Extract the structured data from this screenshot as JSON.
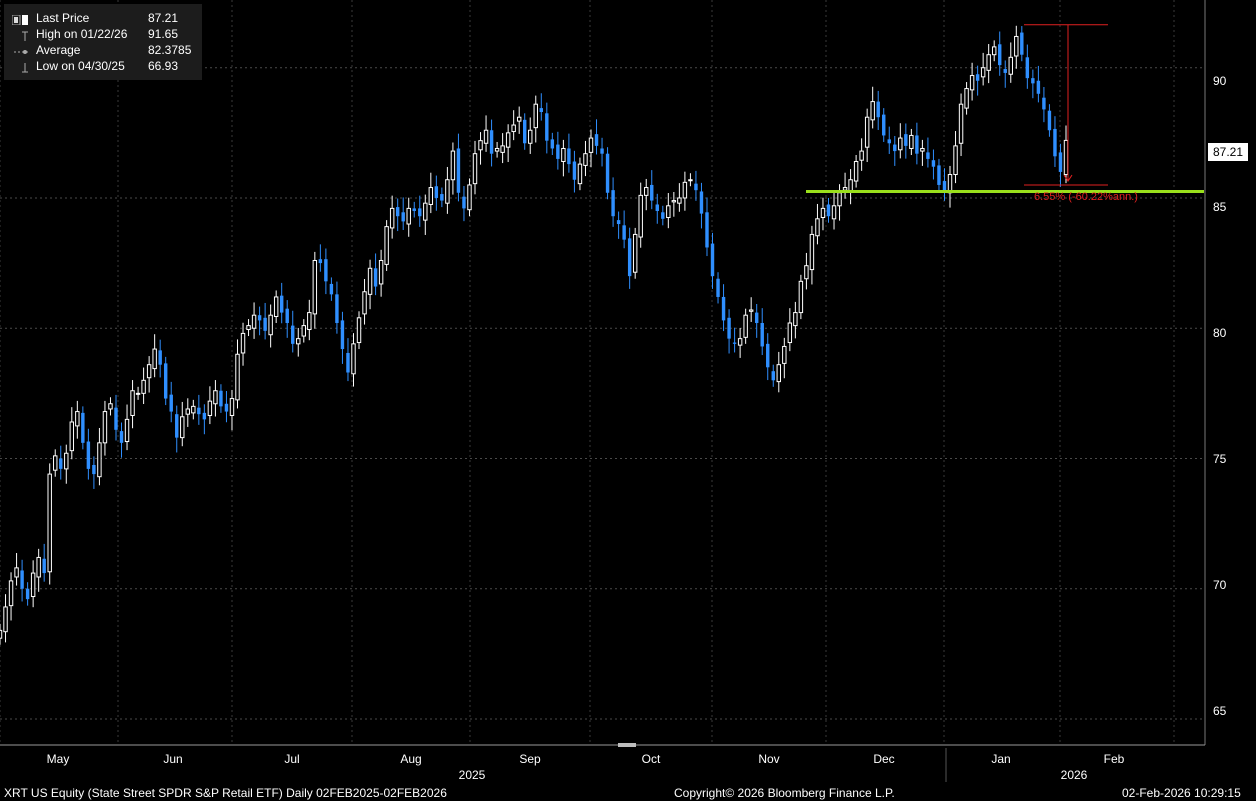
{
  "legend": {
    "last_label": "Last Price",
    "last_value": "87.21",
    "high_label": "High on 01/22/26",
    "high_value": "91.65",
    "avg_label": "Average",
    "avg_value": "82.3785",
    "low_label": "Low on 04/30/25",
    "low_value": "66.93"
  },
  "price_tag": "87.21",
  "annotation": "6.55% (-60.22%ann.)",
  "footer": {
    "left": "XRT US Equity (State Street SPDR S&P Retail ETF) Daily 02FEB2025-02FEB2026",
    "center": "Copyright© 2026 Bloomberg Finance L.P.",
    "right": "02-Feb-2026 10:29:15"
  },
  "y_ticks": [
    "65",
    "70",
    "75",
    "80",
    "85",
    "90"
  ],
  "x_months": [
    "May",
    "Jun",
    "Jul",
    "Aug",
    "Sep",
    "Oct",
    "Nov",
    "Dec",
    "Jan",
    "Feb"
  ],
  "x_years": [
    "2025",
    "2026"
  ],
  "colors": {
    "up": "#ffffff",
    "down": "#2f8fff",
    "support_line": "#9ae01c",
    "measure": "#e02020"
  },
  "chart_data": {
    "type": "candlestick",
    "title": "",
    "xlabel": "",
    "ylabel": "",
    "ylim": [
      64,
      92.6
    ],
    "grid": true,
    "legend_position": "top-left",
    "last_price": 87.21,
    "high": {
      "date": "2026-01-22",
      "value": 91.65
    },
    "average": 82.3785,
    "low": {
      "date": "2025-04-30",
      "value": 66.93
    },
    "support_level": 85.25,
    "measure": {
      "from": 91.65,
      "to": 85.65,
      "label": "6.55% (-60.22%ann.)"
    },
    "series": [
      {
        "name": "Last Price",
        "closes": [
          68.4,
          69.3,
          70.3,
          70.8,
          70.0,
          69.6,
          70.6,
          71.2,
          70.6,
          74.4,
          75.1,
          74.6,
          75.2,
          76.4,
          76.8,
          75.6,
          74.6,
          74.4,
          75.6,
          76.8,
          77.1,
          76.1,
          75.6,
          76.5,
          77.6,
          77.5,
          78.0,
          78.6,
          79.2,
          78.6,
          77.3,
          76.8,
          75.8,
          76.6,
          76.9,
          77.0,
          76.7,
          76.5,
          77.2,
          77.6,
          77.0,
          76.8,
          77.3,
          79.0,
          79.8,
          80.1,
          80.5,
          80.3,
          79.9,
          80.5,
          81.2,
          80.6,
          80.2,
          79.4,
          79.6,
          80.1,
          80.6,
          82.6,
          82.5,
          81.8,
          81.3,
          80.2,
          79.2,
          78.3,
          79.4,
          80.4,
          81.4,
          82.3,
          81.6,
          82.6,
          83.9,
          84.6,
          84.3,
          84.1,
          84.6,
          84.5,
          84.3,
          84.8,
          85.4,
          85.0,
          84.9,
          85.7,
          86.8,
          85.2,
          84.6,
          85.5,
          86.7,
          87.2,
          87.6,
          86.7,
          86.9,
          87.0,
          87.5,
          87.8,
          88.1,
          87.1,
          87.6,
          88.6,
          88.3,
          87.2,
          86.9,
          86.5,
          86.9,
          86.3,
          85.7,
          86.3,
          86.7,
          87.3,
          87.0,
          86.7,
          85.2,
          84.3,
          84.0,
          83.4,
          82.0,
          83.6,
          85.1,
          85.4,
          84.9,
          84.5,
          84.2,
          84.7,
          84.9,
          85.0,
          85.6,
          85.7,
          85.3,
          84.4,
          83.1,
          82.0,
          81.2,
          80.3,
          79.6,
          79.4,
          79.6,
          80.5,
          80.7,
          80.2,
          79.3,
          78.5,
          78.0,
          78.6,
          79.3,
          80.2,
          80.6,
          81.8,
          82.4,
          83.6,
          84.2,
          84.6,
          84.3,
          84.7,
          85.2,
          85.4,
          85.7,
          86.4,
          86.8,
          88.1,
          88.7,
          88.1,
          87.4,
          87.1,
          86.8,
          87.3,
          87.0,
          87.4,
          86.7,
          86.9,
          86.5,
          86.2,
          85.5,
          85.3,
          85.9,
          87.0,
          88.6,
          89.2,
          89.7,
          89.5,
          90.0,
          90.5,
          90.8,
          90.1,
          89.8,
          90.4,
          91.2,
          90.5,
          89.6,
          89.4,
          89.0,
          88.4,
          87.6,
          86.6,
          86.0,
          87.21
        ]
      }
    ]
  }
}
